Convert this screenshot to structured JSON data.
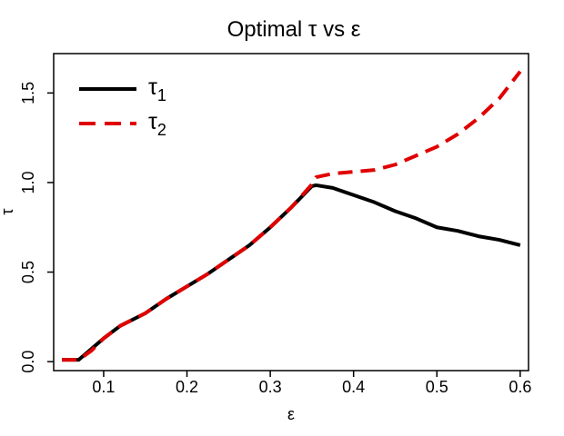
{
  "chart_data": {
    "type": "line",
    "title": "Optimal τ vs ε",
    "xlabel": "ε",
    "ylabel": "τ",
    "xlim": [
      0.04,
      0.61
    ],
    "ylim": [
      -0.05,
      1.72
    ],
    "xticks": [
      0.1,
      0.2,
      0.3,
      0.4,
      0.5,
      0.6
    ],
    "xtick_labels": [
      "0.1",
      "0.2",
      "0.3",
      "0.4",
      "0.5",
      "0.6"
    ],
    "yticks": [
      0.0,
      0.5,
      1.0,
      1.5
    ],
    "ytick_labels": [
      "0.0",
      "0.5",
      "1.0",
      "1.5"
    ],
    "legend": {
      "position": "top-left",
      "entries": [
        {
          "symbol": "τ",
          "subscript": "1"
        },
        {
          "symbol": "τ",
          "subscript": "2"
        }
      ]
    },
    "series": [
      {
        "name": "τ1",
        "color": "#000000",
        "line_style": "solid",
        "x": [
          0.05,
          0.07,
          0.085,
          0.1,
          0.12,
          0.15,
          0.175,
          0.2,
          0.225,
          0.25,
          0.275,
          0.3,
          0.325,
          0.35,
          0.355,
          0.375,
          0.4,
          0.425,
          0.45,
          0.475,
          0.5,
          0.525,
          0.55,
          0.575,
          0.6
        ],
        "y": [
          0.01,
          0.01,
          0.07,
          0.13,
          0.2,
          0.27,
          0.35,
          0.42,
          0.49,
          0.57,
          0.65,
          0.75,
          0.86,
          0.98,
          0.985,
          0.97,
          0.93,
          0.89,
          0.84,
          0.8,
          0.75,
          0.73,
          0.7,
          0.68,
          0.65
        ]
      },
      {
        "name": "τ2",
        "color": "#e00000",
        "line_style": "dashed",
        "x": [
          0.05,
          0.07,
          0.085,
          0.1,
          0.12,
          0.15,
          0.175,
          0.2,
          0.225,
          0.25,
          0.275,
          0.3,
          0.325,
          0.35,
          0.355,
          0.375,
          0.4,
          0.425,
          0.45,
          0.475,
          0.5,
          0.525,
          0.55,
          0.575,
          0.6
        ],
        "y": [
          0.01,
          0.01,
          0.06,
          0.13,
          0.2,
          0.27,
          0.35,
          0.42,
          0.49,
          0.57,
          0.65,
          0.75,
          0.86,
          0.99,
          1.03,
          1.05,
          1.06,
          1.07,
          1.1,
          1.15,
          1.2,
          1.27,
          1.36,
          1.47,
          1.62
        ]
      }
    ]
  }
}
